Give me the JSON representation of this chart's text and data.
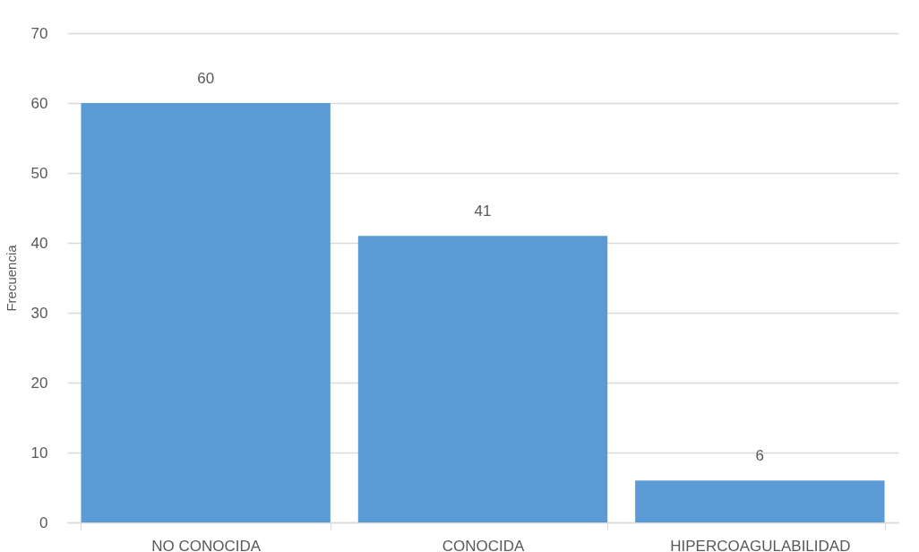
{
  "chart_data": {
    "type": "bar",
    "categories": [
      "NO CONOCIDA",
      "CONOCIDA",
      "HIPERCOAGULABILIDAD"
    ],
    "values": [
      60,
      41,
      6
    ],
    "color": "#5b9bd5",
    "ylabel": "Frecuencia",
    "ylim": [
      0,
      70
    ],
    "yticks": [
      0,
      10,
      20,
      30,
      40,
      50,
      60,
      70
    ],
    "grid": "y",
    "data_labels": true
  }
}
